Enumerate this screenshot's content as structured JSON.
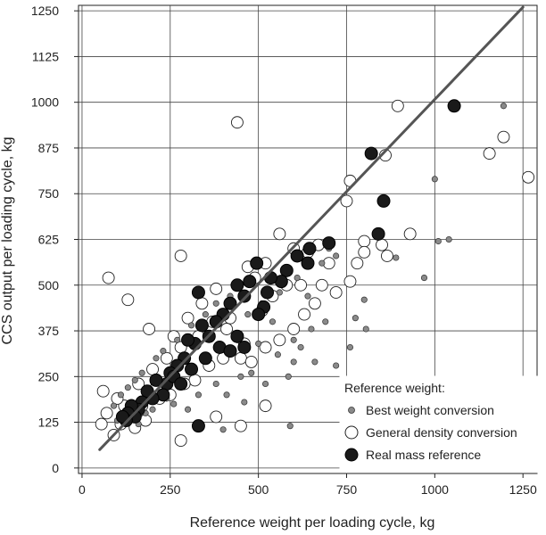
{
  "chart_data": {
    "type": "scatter",
    "xlabel": "Reference weight per loading cycle, kg",
    "ylabel": "CCS output per loading cycle, kg",
    "xlim": [
      -10,
      1290
    ],
    "ylim": [
      -15,
      1265
    ],
    "x_ticks": [
      0,
      250,
      500,
      750,
      1000,
      1250
    ],
    "y_ticks": [
      0,
      125,
      250,
      375,
      500,
      625,
      750,
      875,
      1000,
      1125,
      1250
    ],
    "grid": true,
    "legend": {
      "title": "Reference weight:",
      "placement": "bottom-right"
    },
    "regression_line": {
      "x": [
        50,
        1250
      ],
      "y": [
        50,
        1260
      ],
      "color": "#555555"
    },
    "series": [
      {
        "name": "Best weight conversion",
        "marker": "small-grey-dot",
        "color": "#8a8a8a",
        "points": [
          [
            1195,
            990
          ],
          [
            1000,
            790
          ],
          [
            1010,
            620
          ],
          [
            1040,
            625
          ],
          [
            890,
            575
          ],
          [
            970,
            520
          ],
          [
            800,
            460
          ],
          [
            775,
            410
          ],
          [
            805,
            380
          ],
          [
            690,
            400
          ],
          [
            650,
            380
          ],
          [
            600,
            350
          ],
          [
            620,
            330
          ],
          [
            600,
            290
          ],
          [
            555,
            310
          ],
          [
            585,
            250
          ],
          [
            590,
            115
          ],
          [
            480,
            260
          ],
          [
            500,
            340
          ],
          [
            520,
            230
          ],
          [
            450,
            250
          ],
          [
            460,
            180
          ],
          [
            410,
            200
          ],
          [
            380,
            230
          ],
          [
            400,
            105
          ],
          [
            330,
            200
          ],
          [
            300,
            160
          ],
          [
            260,
            175
          ],
          [
            240,
            190
          ],
          [
            200,
            160
          ],
          [
            180,
            150
          ],
          [
            160,
            120
          ],
          [
            140,
            180
          ],
          [
            120,
            150
          ],
          [
            100,
            130
          ],
          [
            90,
            170
          ],
          [
            110,
            200
          ],
          [
            130,
            220
          ],
          [
            150,
            240
          ],
          [
            170,
            260
          ],
          [
            210,
            300
          ],
          [
            230,
            320
          ],
          [
            270,
            350
          ],
          [
            310,
            390
          ],
          [
            350,
            420
          ],
          [
            380,
            450
          ],
          [
            420,
            470
          ],
          [
            440,
            350
          ],
          [
            470,
            420
          ],
          [
            510,
            450
          ],
          [
            540,
            400
          ],
          [
            560,
            480
          ],
          [
            610,
            520
          ],
          [
            640,
            470
          ],
          [
            680,
            560
          ],
          [
            700,
            600
          ],
          [
            720,
            580
          ],
          [
            660,
            290
          ],
          [
            720,
            280
          ],
          [
            760,
            330
          ]
        ]
      },
      {
        "name": "General density conversion",
        "marker": "open-circle",
        "color": "#ffffff",
        "points": [
          [
            895,
            990
          ],
          [
            1155,
            860
          ],
          [
            1195,
            905
          ],
          [
            1265,
            795
          ],
          [
            860,
            855
          ],
          [
            750,
            730
          ],
          [
            760,
            785
          ],
          [
            800,
            620
          ],
          [
            850,
            610
          ],
          [
            930,
            640
          ],
          [
            865,
            580
          ],
          [
            800,
            590
          ],
          [
            780,
            560
          ],
          [
            760,
            510
          ],
          [
            720,
            480
          ],
          [
            700,
            560
          ],
          [
            670,
            610
          ],
          [
            640,
            590
          ],
          [
            600,
            600
          ],
          [
            560,
            640
          ],
          [
            580,
            500
          ],
          [
            540,
            470
          ],
          [
            510,
            430
          ],
          [
            490,
            520
          ],
          [
            470,
            550
          ],
          [
            440,
            945
          ],
          [
            280,
            580
          ],
          [
            75,
            520
          ],
          [
            130,
            460
          ],
          [
            60,
            210
          ],
          [
            55,
            120
          ],
          [
            90,
            90
          ],
          [
            70,
            150
          ],
          [
            110,
            120
          ],
          [
            150,
            110
          ],
          [
            180,
            130
          ],
          [
            220,
            190
          ],
          [
            190,
            380
          ],
          [
            260,
            360
          ],
          [
            300,
            410
          ],
          [
            340,
            450
          ],
          [
            380,
            490
          ],
          [
            420,
            410
          ],
          [
            450,
            300
          ],
          [
            400,
            300
          ],
          [
            360,
            280
          ],
          [
            320,
            240
          ],
          [
            290,
            230
          ],
          [
            250,
            200
          ],
          [
            210,
            220
          ],
          [
            170,
            170
          ],
          [
            140,
            150
          ],
          [
            120,
            170
          ],
          [
            100,
            190
          ],
          [
            160,
            230
          ],
          [
            200,
            270
          ],
          [
            240,
            300
          ],
          [
            280,
            330
          ],
          [
            330,
            360
          ],
          [
            370,
            400
          ],
          [
            410,
            380
          ],
          [
            460,
            340
          ],
          [
            480,
            290
          ],
          [
            520,
            330
          ],
          [
            560,
            350
          ],
          [
            600,
            380
          ],
          [
            630,
            420
          ],
          [
            660,
            450
          ],
          [
            680,
            500
          ],
          [
            620,
            500
          ],
          [
            520,
            560
          ],
          [
            450,
            115
          ],
          [
            520,
            170
          ],
          [
            280,
            75
          ],
          [
            380,
            140
          ]
        ]
      },
      {
        "name": "Real mass reference",
        "marker": "filled-circle",
        "color": "#1a1a1a",
        "points": [
          [
            1055,
            990
          ],
          [
            820,
            860
          ],
          [
            855,
            730
          ],
          [
            840,
            640
          ],
          [
            700,
            615
          ],
          [
            645,
            600
          ],
          [
            640,
            560
          ],
          [
            610,
            580
          ],
          [
            580,
            540
          ],
          [
            565,
            510
          ],
          [
            535,
            520
          ],
          [
            525,
            480
          ],
          [
            515,
            440
          ],
          [
            500,
            420
          ],
          [
            495,
            560
          ],
          [
            475,
            510
          ],
          [
            460,
            470
          ],
          [
            440,
            500
          ],
          [
            420,
            450
          ],
          [
            400,
            420
          ],
          [
            380,
            400
          ],
          [
            360,
            360
          ],
          [
            340,
            390
          ],
          [
            330,
            480
          ],
          [
            320,
            340
          ],
          [
            300,
            350
          ],
          [
            290,
            300
          ],
          [
            270,
            280
          ],
          [
            250,
            260
          ],
          [
            240,
            230
          ],
          [
            230,
            200
          ],
          [
            210,
            240
          ],
          [
            200,
            190
          ],
          [
            185,
            210
          ],
          [
            170,
            180
          ],
          [
            160,
            160
          ],
          [
            150,
            140
          ],
          [
            140,
            170
          ],
          [
            130,
            150
          ],
          [
            125,
            130
          ],
          [
            115,
            140
          ],
          [
            330,
            115
          ],
          [
            260,
            250
          ],
          [
            280,
            230
          ],
          [
            310,
            270
          ],
          [
            350,
            300
          ],
          [
            390,
            330
          ],
          [
            420,
            320
          ],
          [
            440,
            360
          ],
          [
            460,
            330
          ]
        ]
      }
    ]
  }
}
